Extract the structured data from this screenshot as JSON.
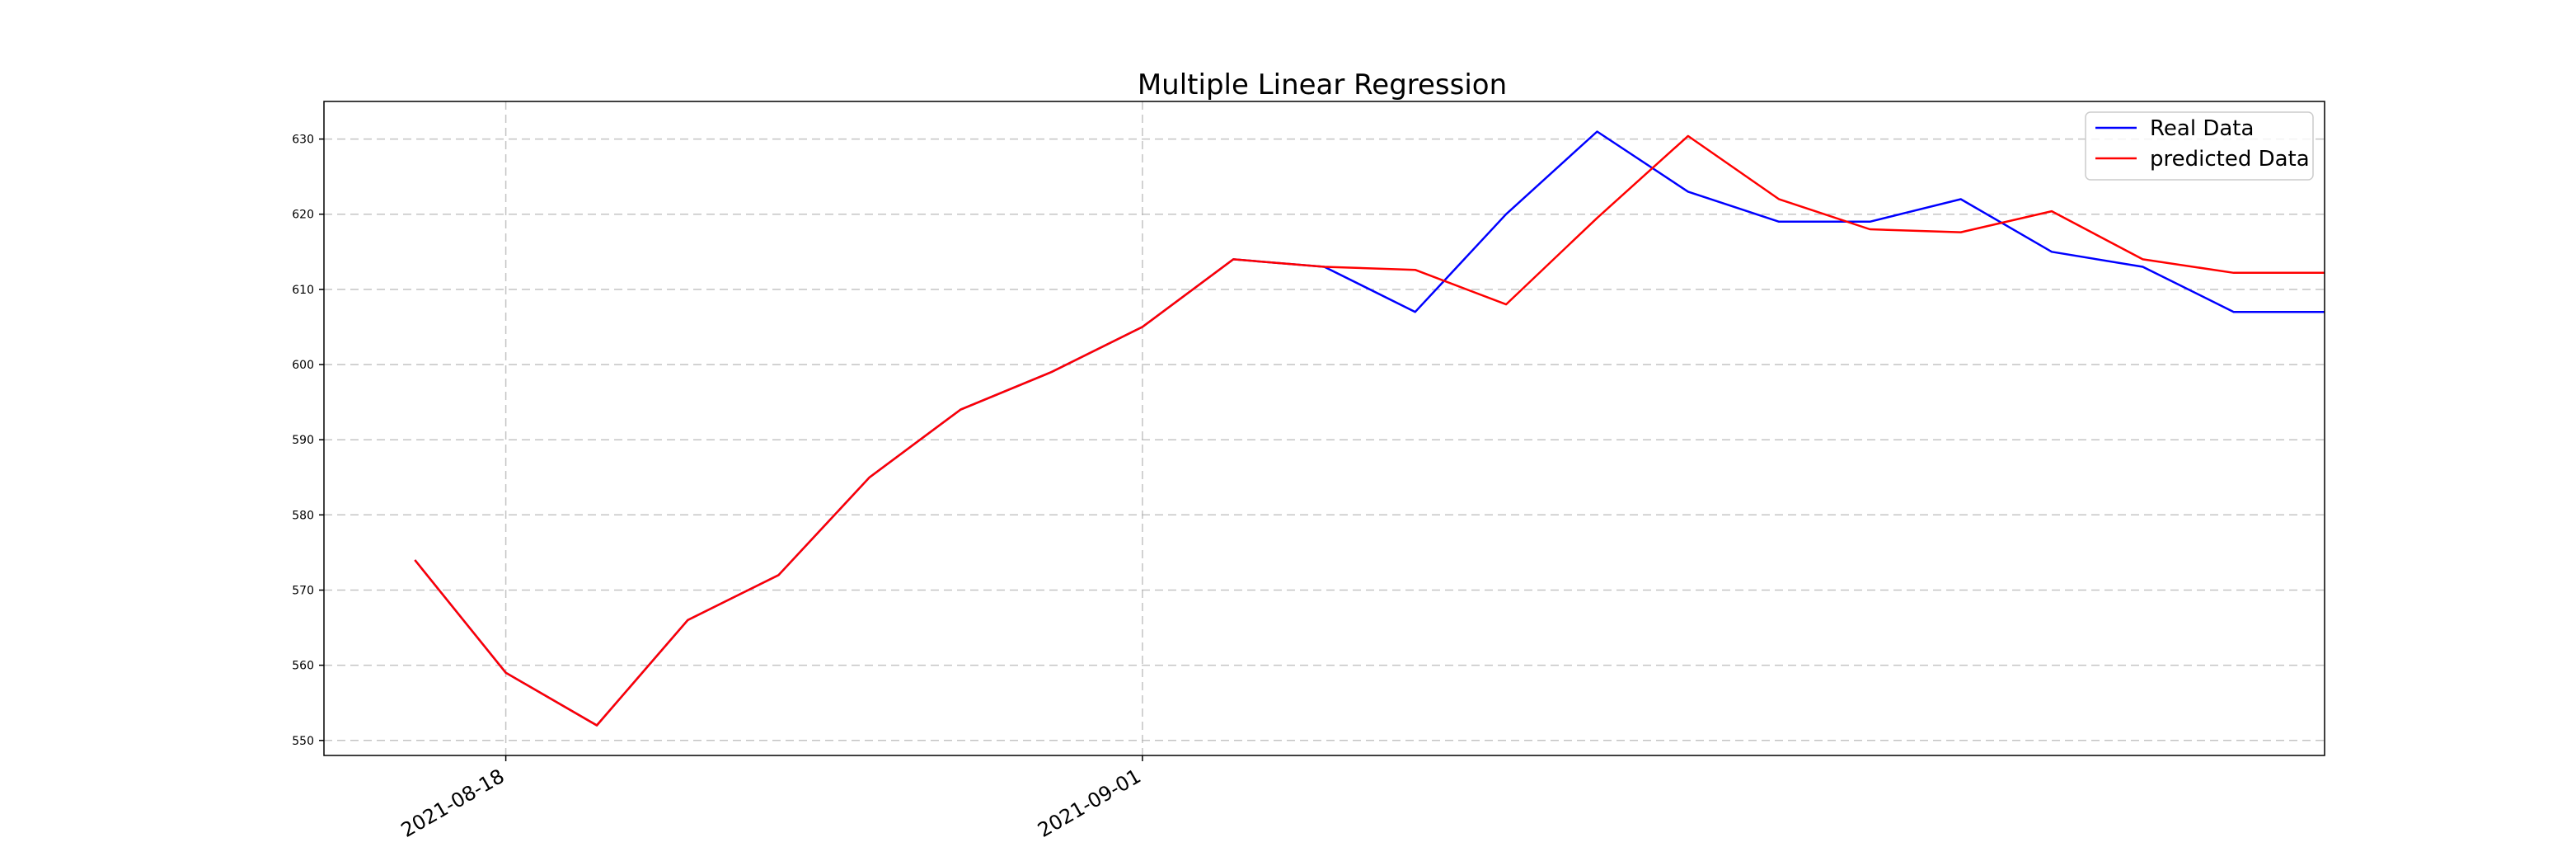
{
  "chart_data": {
    "type": "line",
    "title": "Multiple Linear Regression",
    "xlabel": "",
    "ylabel": "",
    "x": [
      "2021-08-16",
      "2021-08-18",
      "2021-08-20",
      "2021-08-22",
      "2021-08-24",
      "2021-08-26",
      "2021-08-28",
      "2021-08-30",
      "2021-09-01",
      "2021-09-03",
      "2021-09-05",
      "2021-09-07",
      "2021-09-09",
      "2021-09-11",
      "2021-09-13",
      "2021-09-15",
      "2021-09-17",
      "2021-09-19",
      "2021-09-21",
      "2021-09-23",
      "2021-09-25",
      "2021-09-27"
    ],
    "xticks": [
      {
        "date": "2021-08-18",
        "label": "2021-08-18"
      },
      {
        "date": "2021-09-01",
        "label": "2021-09-01"
      }
    ],
    "xlim": [
      "2021-08-14",
      "2021-09-27"
    ],
    "yticks": [
      550,
      560,
      570,
      580,
      590,
      600,
      610,
      620,
      630
    ],
    "ylim": [
      548,
      635
    ],
    "grid": true,
    "legend_position": "top-right",
    "series": [
      {
        "name": "Real Data",
        "color": "#0000ff",
        "dates": [
          "2021-08-16",
          "2021-08-18",
          "2021-08-20",
          "2021-08-22",
          "2021-08-24",
          "2021-08-26",
          "2021-08-28",
          "2021-08-30",
          "2021-09-01",
          "2021-09-03",
          "2021-09-05",
          "2021-09-07",
          "2021-09-09",
          "2021-09-11",
          "2021-09-13",
          "2021-09-15",
          "2021-09-17",
          "2021-09-19",
          "2021-09-21",
          "2021-09-23",
          "2021-09-25",
          "2021-09-27"
        ],
        "values": [
          574,
          559,
          552,
          566,
          572,
          585,
          594,
          599,
          605,
          614,
          613,
          607,
          620,
          631,
          623,
          619,
          619,
          622,
          615,
          613,
          607,
          607
        ]
      },
      {
        "name": "predicted Data",
        "color": "#ff0000",
        "dates": [
          "2021-08-16",
          "2021-08-18",
          "2021-08-20",
          "2021-08-22",
          "2021-08-24",
          "2021-08-26",
          "2021-08-28",
          "2021-08-30",
          "2021-09-01",
          "2021-09-03",
          "2021-09-05",
          "2021-09-07",
          "2021-09-09",
          "2021-09-11",
          "2021-09-13",
          "2021-09-15",
          "2021-09-17",
          "2021-09-19",
          "2021-09-21",
          "2021-09-23",
          "2021-09-25",
          "2021-09-27"
        ],
        "values": [
          574,
          559,
          552,
          566,
          572,
          585,
          594,
          599,
          605,
          614,
          613,
          612.6,
          608,
          619.5,
          630.4,
          622,
          618,
          617.6,
          620.4,
          614,
          612.2,
          612.2
        ]
      }
    ]
  }
}
